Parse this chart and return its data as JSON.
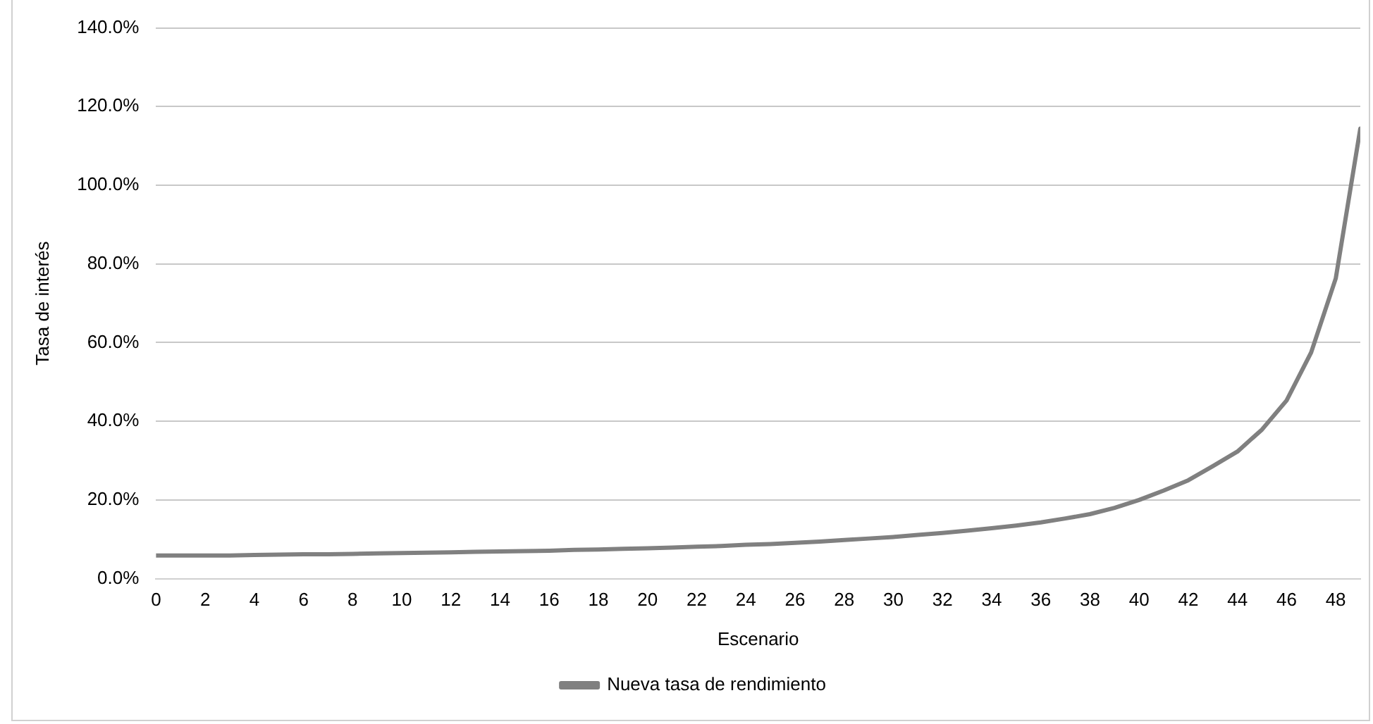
{
  "chart_data": {
    "type": "line",
    "xlabel": "Escenario",
    "ylabel": "Tasa de interés",
    "x": [
      0,
      1,
      2,
      3,
      4,
      5,
      6,
      7,
      8,
      9,
      10,
      11,
      12,
      13,
      14,
      15,
      16,
      17,
      18,
      19,
      20,
      21,
      22,
      23,
      24,
      25,
      26,
      27,
      28,
      29,
      30,
      31,
      32,
      33,
      34,
      35,
      36,
      37,
      38,
      39,
      40,
      41,
      42,
      43,
      44,
      45,
      46,
      47,
      48,
      49
    ],
    "series": [
      {
        "name": "Nueva tasa de rendimiento",
        "color": "#808080",
        "values": [
          5.9,
          5.9,
          5.9,
          5.9,
          6.0,
          6.1,
          6.2,
          6.2,
          6.3,
          6.4,
          6.5,
          6.6,
          6.7,
          6.8,
          6.9,
          7.0,
          7.1,
          7.3,
          7.4,
          7.6,
          7.7,
          7.9,
          8.1,
          8.3,
          8.6,
          8.8,
          9.1,
          9.4,
          9.8,
          10.2,
          10.6,
          11.1,
          11.6,
          12.2,
          12.8,
          13.5,
          14.3,
          15.3,
          16.4,
          18,
          20,
          22.4,
          25,
          28.6,
          32.3,
          37.9,
          45.3,
          57.5,
          76.3,
          114.4
        ]
      }
    ],
    "xlim": [
      0,
      49
    ],
    "xticks": [
      0,
      2,
      4,
      6,
      8,
      10,
      12,
      14,
      16,
      18,
      20,
      22,
      24,
      26,
      28,
      30,
      32,
      34,
      36,
      38,
      40,
      42,
      44,
      46,
      48
    ],
    "ylim": [
      0,
      140
    ],
    "yticks": [
      {
        "value": 0,
        "label": "0.0%"
      },
      {
        "value": 20,
        "label": "20.0%"
      },
      {
        "value": 40,
        "label": "40.0%"
      },
      {
        "value": 60,
        "label": "60.0%"
      },
      {
        "value": 80,
        "label": "80.0%"
      },
      {
        "value": 100,
        "label": "100.0%"
      },
      {
        "value": 120,
        "label": "120.0%"
      },
      {
        "value": 140,
        "label": "140.0%"
      }
    ],
    "grid": "y",
    "legend": "bottom",
    "marker": "none",
    "line_style": "solid"
  }
}
